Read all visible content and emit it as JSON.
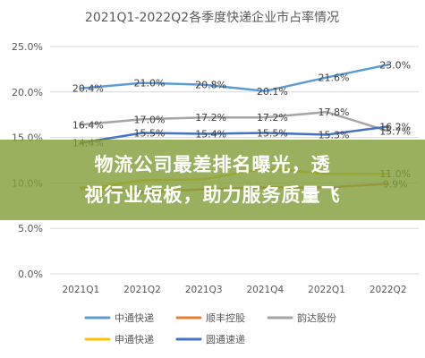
{
  "chart_data": {
    "type": "line",
    "title": "2021Q1-2022Q2各季度快递企业市占率情况",
    "categories": [
      "2021Q1",
      "2021Q2",
      "2021Q3",
      "2021Q4",
      "2022Q1",
      "2022Q2"
    ],
    "ylim": [
      0,
      25
    ],
    "yticks": [
      "0.0%",
      "5.0%",
      "10.0%",
      "15.0%",
      "20.0%",
      "25.0%"
    ],
    "grid": true,
    "legend_position": "bottom",
    "series": [
      {
        "name": "中通快递",
        "color": "#5b9bd5",
        "values": [
          20.4,
          21.0,
          20.8,
          20.1,
          21.6,
          23.0
        ],
        "labels": [
          "20.4%",
          "21.0%",
          "20.8%",
          "20.1%",
          "21.6%",
          "23.0%"
        ]
      },
      {
        "name": "顺丰控股",
        "color": "#ed7d31",
        "values": [
          9.5,
          9.0,
          9.3,
          9.5,
          9.5,
          9.9
        ],
        "labels": [
          "",
          "9.0%",
          "",
          "",
          "",
          "9.9%"
        ]
      },
      {
        "name": "韵达股份",
        "color": "#a5a5a5",
        "values": [
          16.4,
          17.0,
          17.2,
          17.2,
          17.8,
          15.7
        ],
        "labels": [
          "16.4%",
          "17.0%",
          "17.2%",
          "17.2%",
          "17.8%",
          "15.7%"
        ]
      },
      {
        "name": "申通快递",
        "color": "#ffc000",
        "values": [
          9.3,
          10.3,
          10.4,
          11.6,
          11.0,
          11.0
        ],
        "labels": [
          "",
          "",
          "",
          "",
          "",
          "11.0%"
        ]
      },
      {
        "name": "圆通速递",
        "color": "#4472c4",
        "values": [
          14.4,
          15.5,
          15.4,
          15.5,
          15.3,
          16.2
        ],
        "labels": [
          "14.4%",
          "15.5%",
          "15.4%",
          "15.5%",
          "15.3%",
          "16.2%"
        ]
      }
    ]
  },
  "banner": {
    "line1": "物流公司最差排名曝光，透",
    "line2": "视行业短板，助力服务质量飞"
  }
}
